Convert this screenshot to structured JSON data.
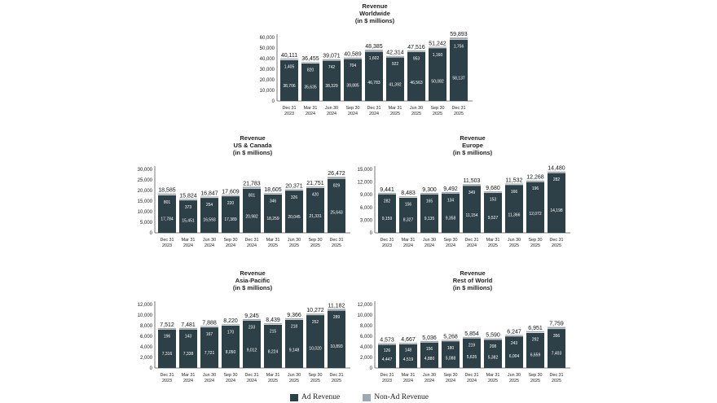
{
  "colors": {
    "ad": "#2d3f47",
    "non_ad": "#9eaab1",
    "axis": "#555555"
  },
  "legend": {
    "ad_label": "Ad Revenue",
    "non_ad_label": "Non-Ad Revenue"
  },
  "chart_data": [
    {
      "id": "worldwide",
      "type": "bar",
      "stacked": true,
      "title_lines": [
        "Revenue",
        "Worldwide",
        "(in $ millions)"
      ],
      "categories": [
        [
          "Dec 31",
          "2023"
        ],
        [
          "Mar 31",
          "2024"
        ],
        [
          "Jun 30",
          "2024"
        ],
        [
          "Sep 30",
          "2024"
        ],
        [
          "Dec 31",
          "2024"
        ],
        [
          "Mar 31",
          "2025"
        ],
        [
          "Jun 30",
          "2025"
        ],
        [
          "Sep 30",
          "2025"
        ],
        [
          "Dec 31",
          "2025"
        ]
      ],
      "series": [
        {
          "name": "Ad Revenue",
          "values": [
            38706,
            35635,
            38329,
            39885,
            46783,
            41392,
            46563,
            50082,
            58137
          ],
          "labels": [
            "38,706",
            "35,635",
            "38,329",
            "39,885",
            "46,783",
            "41,392",
            "46,563",
            "50,082",
            "58,137"
          ]
        },
        {
          "name": "Non-Ad Revenue",
          "values": [
            1405,
            820,
            742,
            704,
            1602,
            922,
            953,
            1160,
            1756
          ],
          "labels": [
            "1,405",
            "820",
            "742",
            "704",
            "1,602",
            "922",
            "953",
            "1,160",
            "1,756"
          ]
        }
      ],
      "totals": [
        "40,111",
        "36,455",
        "39,071",
        "40,589",
        "48,385",
        "42,314",
        "47,516",
        "51,242",
        "59,893"
      ],
      "ylim": [
        0,
        60000
      ],
      "yticks": [
        0,
        10000,
        20000,
        30000,
        40000,
        50000,
        60000
      ],
      "ytick_labels": [
        "0",
        "10,000",
        "20,000",
        "30,000",
        "40,000",
        "50,000",
        "60,000"
      ],
      "grid": false
    },
    {
      "id": "us-canada",
      "type": "bar",
      "stacked": true,
      "title_lines": [
        "Revenue",
        "US & Canada",
        "(in $ millions)"
      ],
      "categories": [
        [
          "Dec 31",
          "2023"
        ],
        [
          "Mar 31",
          "2024"
        ],
        [
          "Jun 30",
          "2024"
        ],
        [
          "Sep 30",
          "2024"
        ],
        [
          "Dec 31",
          "2024"
        ],
        [
          "Mar 31",
          "2025"
        ],
        [
          "Jun 30",
          "2025"
        ],
        [
          "Sep 30",
          "2025"
        ],
        [
          "Dec 31",
          "2025"
        ]
      ],
      "series": [
        {
          "name": "Ad Revenue",
          "values": [
            17784,
            15451,
            16593,
            17389,
            20982,
            18259,
            20045,
            21331,
            25643
          ],
          "labels": [
            "17,784",
            "15,451",
            "16,593",
            "17,389",
            "20,982",
            "18,259",
            "20,045",
            "21,331",
            "25,643"
          ]
        },
        {
          "name": "Non-Ad Revenue",
          "values": [
            801,
            373,
            254,
            220,
            801,
            346,
            326,
            420,
            829
          ],
          "labels": [
            "801",
            "373",
            "254",
            "220",
            "801",
            "346",
            "326",
            "420",
            "829"
          ]
        }
      ],
      "totals": [
        "18,585",
        "15,824",
        "16,847",
        "17,609",
        "21,783",
        "18,605",
        "20,371",
        "21,751",
        "26,472"
      ],
      "ylim": [
        0,
        30000
      ],
      "yticks": [
        0,
        5000,
        10000,
        15000,
        20000,
        25000,
        30000
      ],
      "ytick_labels": [
        "0",
        "5,000",
        "10,000",
        "15,000",
        "20,000",
        "25,000",
        "30,000"
      ],
      "grid": false
    },
    {
      "id": "europe",
      "type": "bar",
      "stacked": true,
      "title_lines": [
        "Revenue",
        "Europe",
        "(in $ millions)"
      ],
      "categories": [
        [
          "Dec 31",
          "2023"
        ],
        [
          "Mar 31",
          "2024"
        ],
        [
          "Jun 30",
          "2024"
        ],
        [
          "Sep 30",
          "2024"
        ],
        [
          "Dec 31",
          "2024"
        ],
        [
          "Mar 31",
          "2025"
        ],
        [
          "Jun 30",
          "2025"
        ],
        [
          "Sep 30",
          "2025"
        ],
        [
          "Dec 31",
          "2025"
        ]
      ],
      "series": [
        {
          "name": "Ad Revenue",
          "values": [
            9159,
            8327,
            9135,
            9358,
            11154,
            9527,
            11366,
            12072,
            14198
          ],
          "labels": [
            "9,159",
            "8,327",
            "9,135",
            "9,358",
            "11,154",
            "9,527",
            "11,366",
            "12,072",
            "14,198"
          ]
        },
        {
          "name": "Non-Ad Revenue",
          "values": [
            282,
            156,
            165,
            134,
            349,
            153,
            166,
            196,
            282
          ],
          "labels": [
            "282",
            "156",
            "165",
            "134",
            "349",
            "153",
            "166",
            "196",
            "282"
          ]
        }
      ],
      "totals": [
        "9,441",
        "8,483",
        "9,300",
        "9,492",
        "11,503",
        "9,680",
        "11,532",
        "12,268",
        "14,480"
      ],
      "ylim": [
        0,
        15000
      ],
      "yticks": [
        0,
        3000,
        6000,
        9000,
        12000,
        15000
      ],
      "ytick_labels": [
        "0",
        "3,000",
        "6,000",
        "9,000",
        "12,000",
        "15,000"
      ],
      "grid": false
    },
    {
      "id": "asia-pacific",
      "type": "bar",
      "stacked": true,
      "title_lines": [
        "Revenue",
        "Asia-Pacific",
        "(in $ millions)"
      ],
      "categories": [
        [
          "Dec 31",
          "2023"
        ],
        [
          "Mar 31",
          "2024"
        ],
        [
          "Jun 30",
          "2024"
        ],
        [
          "Sep 30",
          "2024"
        ],
        [
          "Dec 31",
          "2024"
        ],
        [
          "Mar 31",
          "2025"
        ],
        [
          "Jun 30",
          "2025"
        ],
        [
          "Sep 30",
          "2025"
        ],
        [
          "Dec 31",
          "2025"
        ]
      ],
      "series": [
        {
          "name": "Ad Revenue",
          "values": [
            7316,
            7338,
            7721,
            8050,
            9012,
            8224,
            9148,
            10020,
            10893
          ],
          "labels": [
            "7,316",
            "7,338",
            "7,721",
            "8,050",
            "9,012",
            "8,224",
            "9,148",
            "10,020",
            "10,893"
          ]
        },
        {
          "name": "Non-Ad Revenue",
          "values": [
            196,
            143,
            167,
            170,
            233,
            215,
            218,
            252,
            289
          ],
          "labels": [
            "196",
            "143",
            "167",
            "170",
            "233",
            "215",
            "218",
            "252",
            "289"
          ]
        }
      ],
      "totals": [
        "7,512",
        "7,481",
        "7,888",
        "8,220",
        "9,245",
        "8,439",
        "9,366",
        "10,272",
        "11,182"
      ],
      "ylim": [
        0,
        12000
      ],
      "yticks": [
        0,
        2000,
        4000,
        6000,
        8000,
        10000,
        12000
      ],
      "ytick_labels": [
        "0",
        "2,000",
        "4,000",
        "6,000",
        "8,000",
        "10,000",
        "12,000"
      ],
      "grid": false
    },
    {
      "id": "rest-of-world",
      "type": "bar",
      "stacked": true,
      "title_lines": [
        "Revenue",
        "Rest of World",
        "(in $ millions)"
      ],
      "categories": [
        [
          "Dec 31",
          "2023"
        ],
        [
          "Mar 31",
          "2024"
        ],
        [
          "Jun 30",
          "2024"
        ],
        [
          "Sep 30",
          "2024"
        ],
        [
          "Dec 31",
          "2024"
        ],
        [
          "Mar 31",
          "2025"
        ],
        [
          "Jun 30",
          "2025"
        ],
        [
          "Sep 30",
          "2025"
        ],
        [
          "Dec 31",
          "2025"
        ]
      ],
      "series": [
        {
          "name": "Ad Revenue",
          "values": [
            4447,
            4519,
            4880,
            5088,
            5635,
            5382,
            6004,
            6659,
            7403
          ],
          "labels": [
            "4,447",
            "4,519",
            "4,880",
            "5,088",
            "5,635",
            "5,382",
            "6,004",
            "6,659",
            "7,403"
          ]
        },
        {
          "name": "Non-Ad Revenue",
          "values": [
            126,
            148,
            156,
            180,
            219,
            208,
            243,
            292,
            356
          ],
          "labels": [
            "126",
            "148",
            "156",
            "180",
            "219",
            "208",
            "243",
            "292",
            "356"
          ]
        }
      ],
      "totals": [
        "4,573",
        "4,667",
        "5,036",
        "5,268",
        "5,854",
        "5,590",
        "6,247",
        "6,951",
        "7,759"
      ],
      "ylim": [
        0,
        12000
      ],
      "yticks": [
        0,
        2000,
        4000,
        6000,
        8000,
        10000,
        12000
      ],
      "ytick_labels": [
        "0",
        "2,000",
        "4,000",
        "6,000",
        "8,000",
        "10,000",
        "12,000"
      ],
      "grid": false
    }
  ]
}
